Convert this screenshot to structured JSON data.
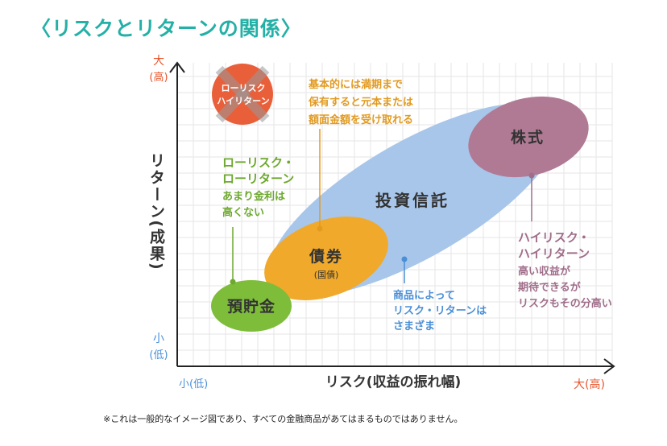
{
  "title": "〈リスクとリターンの関係〉",
  "colors": {
    "title": "#23b0a6",
    "axis": "#222222",
    "grid": "#e6e6e6",
    "high_label": "#e8542a",
    "low_label": "#4a90d9",
    "deposit": "#7dbd3a",
    "bond": "#f0a92b",
    "fund": "#a8c6ea",
    "stock": "#b07a95",
    "forbidden": "#e95f3a",
    "green_text": "#6ea82f",
    "orange_text": "#e29a20",
    "blue_text": "#4a8fd6",
    "purple_text": "#a06d8a"
  },
  "axes": {
    "y_label": "リターン(成果)",
    "x_label": "リスク(収益の振れ幅)",
    "y_high": [
      "大",
      "(高)"
    ],
    "y_low": [
      "小",
      "(低)"
    ],
    "x_low": "小(低)",
    "x_high": "大(高)"
  },
  "bubbles": {
    "deposit": "預貯金",
    "bond": "債券",
    "bond_sub": "(国債)",
    "fund": "投資信託",
    "stock": "株式"
  },
  "forbidden": {
    "line1": "ローリスク",
    "line2": "ハイリターン"
  },
  "callouts": {
    "bond_note": [
      "基本的には満期まで",
      "保有すると元本または",
      "額面金額を受け取れる"
    ],
    "deposit_note_head": [
      "ローリスク・",
      "ローリターン"
    ],
    "deposit_note_body": [
      "あまり金利は",
      "高くない"
    ],
    "fund_note": [
      "商品によって",
      "リスク・リターンは",
      "さまざま"
    ],
    "stock_note_head": [
      "ハイリスク・",
      "ハイリターン"
    ],
    "stock_note_body": [
      "高い収益が",
      "期待できるが",
      "リスクもその分高い"
    ]
  },
  "footnote": "※これは一般的なイメージ図であり、すべての金融商品があてはまるものではありません。"
}
